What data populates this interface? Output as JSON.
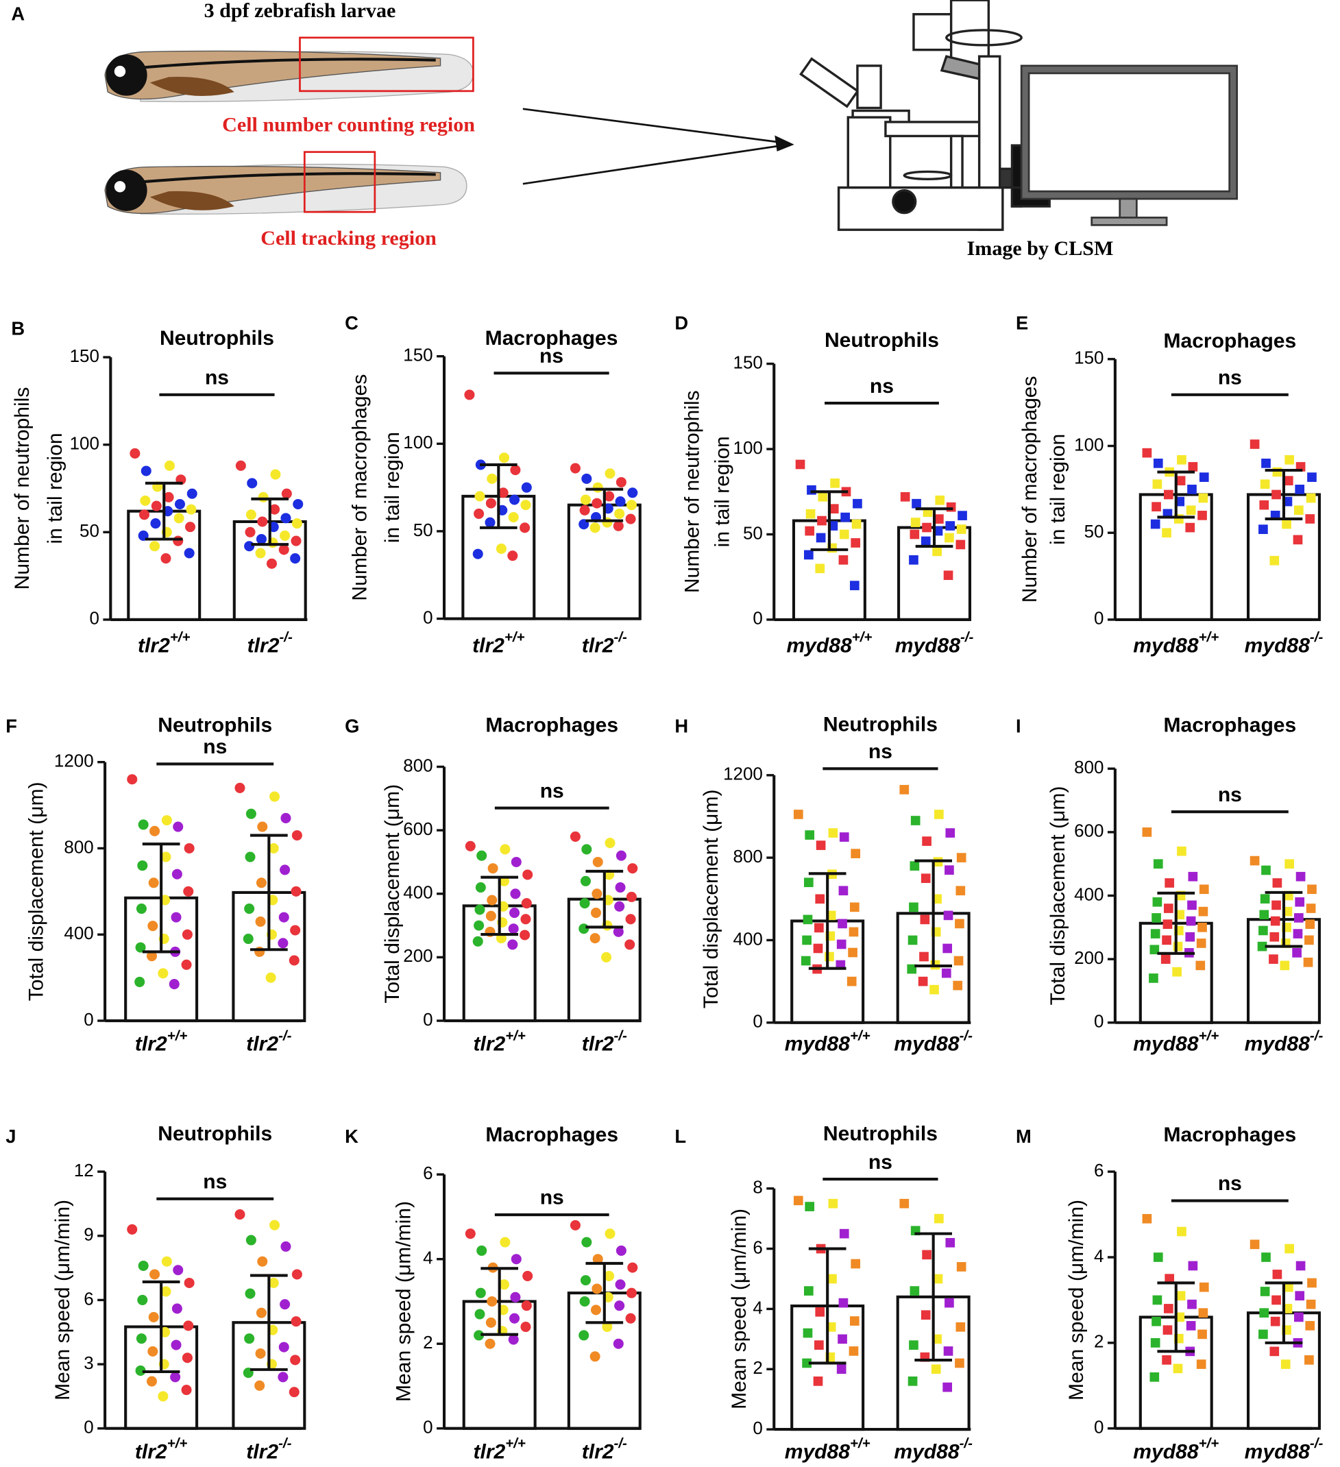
{
  "panel_a": {
    "label": "A",
    "title": "3 dpf zebrafish larvae",
    "regions": [
      "Cell number counting region",
      "Cell tracking region"
    ],
    "caption": "Image by CLSM"
  },
  "chart_data": [
    {
      "type": "bar",
      "label": "B",
      "title": "Neutrophils",
      "ylabel": [
        "Number of neutrophils",
        "in tail region"
      ],
      "categories": [
        {
          "name": "tlr2",
          "genotype": "+/+"
        },
        {
          "name": "tlr2",
          "genotype": "-/-"
        }
      ],
      "values": [
        62,
        56
      ],
      "errors": [
        16,
        13
      ],
      "color": "#ffffff",
      "marker": "circle",
      "point_colors": [
        "#e8343a",
        "#f5e82a",
        "#1c2ee0"
      ],
      "points": [
        [
          95,
          88,
          85,
          80,
          76,
          72,
          70,
          68,
          66,
          65,
          63,
          62,
          60,
          58,
          55,
          53,
          50,
          48,
          45,
          42,
          38,
          35
        ],
        [
          88,
          83,
          78,
          72,
          70,
          66,
          63,
          60,
          58,
          56,
          55,
          53,
          50,
          48,
          46,
          45,
          44,
          42,
          40,
          38,
          35,
          32
        ]
      ],
      "ylim": [
        0,
        150
      ],
      "yticks": [
        0,
        50,
        100,
        150
      ],
      "annotation": "ns"
    },
    {
      "type": "bar",
      "label": "C",
      "title": "Macrophages",
      "ylabel": [
        "Number of macrophages",
        "in tail region"
      ],
      "categories": [
        {
          "name": "tlr2",
          "genotype": "+/+"
        },
        {
          "name": "tlr2",
          "genotype": "-/-"
        }
      ],
      "values": [
        70,
        65
      ],
      "errors": [
        18,
        9
      ],
      "color": "#ffffff",
      "marker": "circle",
      "point_colors": [
        "#e8343a",
        "#f5e82a",
        "#1c2ee0"
      ],
      "points": [
        [
          128,
          92,
          88,
          85,
          80,
          75,
          72,
          70,
          68,
          66,
          65,
          62,
          60,
          58,
          55,
          52,
          40,
          37,
          36
        ],
        [
          86,
          83,
          80,
          78,
          75,
          72,
          70,
          68,
          67,
          66,
          65,
          63,
          62,
          60,
          58,
          57,
          55,
          54,
          53,
          52
        ]
      ],
      "ylim": [
        0,
        150
      ],
      "yticks": [
        0,
        50,
        100,
        150
      ],
      "annotation": "ns"
    },
    {
      "type": "bar",
      "label": "D",
      "title": "Neutrophils",
      "ylabel": [
        "Number of neutrophils",
        "in tail region"
      ],
      "categories": [
        {
          "name": "myd88",
          "genotype": "+/+"
        },
        {
          "name": "myd88",
          "genotype": "-/-"
        }
      ],
      "values": [
        58,
        54
      ],
      "errors": [
        17,
        11
      ],
      "color": "#ffffff",
      "marker": "square",
      "point_colors": [
        "#e8343a",
        "#f5e82a",
        "#1c2ee0"
      ],
      "points": [
        [
          91,
          80,
          76,
          75,
          72,
          68,
          65,
          62,
          60,
          58,
          56,
          55,
          52,
          50,
          48,
          45,
          42,
          38,
          35,
          30,
          20
        ],
        [
          72,
          70,
          68,
          66,
          63,
          61,
          59,
          57,
          55,
          54,
          53,
          52,
          50,
          48,
          46,
          44,
          40,
          35,
          26
        ]
      ],
      "ylim": [
        0,
        150
      ],
      "yticks": [
        0,
        50,
        100,
        150
      ],
      "annotation": "ns"
    },
    {
      "type": "bar",
      "label": "E",
      "title": "Macrophages",
      "ylabel": [
        "Number of macrophages",
        "in tail region"
      ],
      "categories": [
        {
          "name": "myd88",
          "genotype": "+/+"
        },
        {
          "name": "myd88",
          "genotype": "-/-"
        }
      ],
      "values": [
        72,
        72
      ],
      "errors": [
        13,
        14
      ],
      "color": "#ffffff",
      "marker": "square",
      "point_colors": [
        "#e8343a",
        "#f5e82a",
        "#1c2ee0"
      ],
      "points": [
        [
          96,
          92,
          90,
          88,
          85,
          82,
          80,
          78,
          75,
          72,
          70,
          68,
          65,
          63,
          61,
          60,
          58,
          55,
          53,
          50
        ],
        [
          101,
          92,
          90,
          88,
          85,
          82,
          80,
          78,
          75,
          72,
          70,
          68,
          66,
          63,
          60,
          58,
          55,
          52,
          46,
          34
        ]
      ],
      "ylim": [
        0,
        150
      ],
      "yticks": [
        0,
        50,
        100,
        150
      ],
      "annotation": "ns"
    },
    {
      "type": "bar",
      "label": "F",
      "title": "Neutrophils",
      "ylabel": [
        "Total displacement (μm)"
      ],
      "categories": [
        {
          "name": "tlr2",
          "genotype": "+/+"
        },
        {
          "name": "tlr2",
          "genotype": "-/-"
        }
      ],
      "values": [
        570,
        595
      ],
      "errors": [
        250,
        265
      ],
      "color": "#ffffff",
      "marker": "circle",
      "point_colors": [
        "#e8343a",
        "#f5e82a",
        "#2bb32b",
        "#a020d0",
        "#f08a24"
      ],
      "points": [
        [
          1120,
          930,
          910,
          900,
          880,
          800,
          760,
          720,
          680,
          640,
          600,
          560,
          520,
          480,
          440,
          400,
          380,
          340,
          320,
          300,
          260,
          220,
          180,
          170
        ],
        [
          1080,
          1040,
          960,
          940,
          900,
          860,
          800,
          760,
          700,
          640,
          600,
          560,
          520,
          480,
          460,
          420,
          400,
          380,
          360,
          320,
          280,
          200
        ]
      ],
      "ylim": [
        0,
        1200
      ],
      "yticks": [
        0,
        400,
        800,
        1200
      ],
      "annotation": "ns"
    },
    {
      "type": "bar",
      "label": "G",
      "title": "Macrophages",
      "ylabel": [
        "Total displacement (μm)"
      ],
      "categories": [
        {
          "name": "tlr2",
          "genotype": "+/+"
        },
        {
          "name": "tlr2",
          "genotype": "-/-"
        }
      ],
      "values": [
        362,
        383
      ],
      "errors": [
        90,
        88
      ],
      "color": "#ffffff",
      "marker": "circle",
      "point_colors": [
        "#e8343a",
        "#f5e82a",
        "#2bb32b",
        "#a020d0",
        "#f08a24"
      ],
      "points": [
        [
          550,
          540,
          520,
          500,
          480,
          460,
          440,
          420,
          400,
          380,
          370,
          360,
          350,
          340,
          330,
          320,
          310,
          300,
          290,
          280,
          270,
          260,
          250,
          240
        ],
        [
          580,
          560,
          540,
          520,
          500,
          480,
          460,
          440,
          420,
          400,
          390,
          380,
          370,
          360,
          340,
          320,
          300,
          290,
          280,
          260,
          240,
          200
        ]
      ],
      "ylim": [
        0,
        800
      ],
      "yticks": [
        0,
        200,
        400,
        600,
        800
      ],
      "annotation": "ns"
    },
    {
      "type": "bar",
      "label": "H",
      "title": "Neutrophils",
      "ylabel": [
        "Total displacement (μm)"
      ],
      "categories": [
        {
          "name": "myd88",
          "genotype": "+/+"
        },
        {
          "name": "myd88",
          "genotype": "-/-"
        }
      ],
      "values": [
        493,
        530
      ],
      "errors": [
        230,
        255
      ],
      "color": "#ffffff",
      "marker": "square",
      "point_colors": [
        "#f08a24",
        "#f5e82a",
        "#2bb32b",
        "#a020d0",
        "#e8343a"
      ],
      "points": [
        [
          1010,
          920,
          910,
          900,
          860,
          820,
          720,
          680,
          640,
          600,
          560,
          520,
          500,
          480,
          460,
          440,
          420,
          400,
          380,
          360,
          340,
          320,
          300,
          280,
          260,
          200
        ],
        [
          1130,
          1010,
          980,
          920,
          880,
          800,
          780,
          760,
          740,
          700,
          640,
          600,
          560,
          520,
          500,
          480,
          440,
          400,
          360,
          320,
          300,
          280,
          260,
          240,
          200,
          180,
          160
        ]
      ],
      "ylim": [
        0,
        1200
      ],
      "yticks": [
        0,
        400,
        800,
        1200
      ],
      "annotation": "ns"
    },
    {
      "type": "bar",
      "label": "I",
      "title": "Macrophages",
      "ylabel": [
        "Total displacement (μm)"
      ],
      "categories": [
        {
          "name": "myd88",
          "genotype": "+/+"
        },
        {
          "name": "myd88",
          "genotype": "-/-"
        }
      ],
      "values": [
        313,
        325
      ],
      "errors": [
        95,
        85
      ],
      "color": "#ffffff",
      "marker": "square",
      "point_colors": [
        "#f08a24",
        "#f5e82a",
        "#2bb32b",
        "#a020d0",
        "#e8343a"
      ],
      "points": [
        [
          600,
          540,
          500,
          460,
          440,
          420,
          400,
          380,
          370,
          360,
          350,
          340,
          330,
          320,
          310,
          300,
          290,
          280,
          270,
          260,
          250,
          240,
          230,
          220,
          200,
          180,
          160,
          140
        ],
        [
          510,
          500,
          480,
          460,
          440,
          420,
          400,
          390,
          380,
          370,
          360,
          350,
          340,
          330,
          320,
          310,
          300,
          290,
          280,
          270,
          260,
          250,
          240,
          220,
          200,
          190,
          180
        ]
      ],
      "ylim": [
        0,
        800
      ],
      "yticks": [
        0,
        200,
        400,
        600,
        800
      ],
      "annotation": "ns"
    },
    {
      "type": "bar",
      "label": "J",
      "title": "Neutrophils",
      "ylabel": [
        "Mean speed (μm/min)"
      ],
      "categories": [
        {
          "name": "tlr2",
          "genotype": "+/+"
        },
        {
          "name": "tlr2",
          "genotype": "-/-"
        }
      ],
      "values": [
        4.75,
        4.95
      ],
      "errors": [
        2.1,
        2.2
      ],
      "color": "#ffffff",
      "marker": "circle",
      "point_colors": [
        "#e8343a",
        "#f5e82a",
        "#2bb32b",
        "#a020d0",
        "#f08a24"
      ],
      "points": [
        [
          9.3,
          7.8,
          7.6,
          7.4,
          7.2,
          6.8,
          6.4,
          6.0,
          5.6,
          5.2,
          4.8,
          4.5,
          4.2,
          3.9,
          3.6,
          3.3,
          3.0,
          2.7,
          2.4,
          2.2,
          1.8,
          1.5
        ],
        [
          10.0,
          9.5,
          8.8,
          8.5,
          7.8,
          7.2,
          6.8,
          6.3,
          5.8,
          5.4,
          5.0,
          4.6,
          4.2,
          3.8,
          3.5,
          3.2,
          3.0,
          2.6,
          2.4,
          2.0,
          1.7
        ]
      ],
      "ylim": [
        0,
        12
      ],
      "yticks": [
        0,
        3,
        6,
        9,
        12
      ],
      "annotation": "ns"
    },
    {
      "type": "bar",
      "label": "K",
      "title": "Macrophages",
      "ylabel": [
        "Mean speed (μm/min)"
      ],
      "categories": [
        {
          "name": "tlr2",
          "genotype": "+/+"
        },
        {
          "name": "tlr2",
          "genotype": "-/-"
        }
      ],
      "values": [
        3.0,
        3.2
      ],
      "errors": [
        0.78,
        0.7
      ],
      "color": "#ffffff",
      "marker": "circle",
      "point_colors": [
        "#e8343a",
        "#f5e82a",
        "#2bb32b",
        "#a020d0",
        "#f08a24"
      ],
      "points": [
        [
          4.6,
          4.4,
          4.2,
          4.0,
          3.8,
          3.6,
          3.4,
          3.2,
          3.1,
          3.0,
          2.9,
          2.8,
          2.7,
          2.6,
          2.5,
          2.4,
          2.3,
          2.2,
          2.1,
          2.0
        ],
        [
          4.8,
          4.6,
          4.4,
          4.2,
          4.0,
          3.8,
          3.6,
          3.5,
          3.4,
          3.3,
          3.2,
          3.1,
          3.0,
          2.9,
          2.8,
          2.6,
          2.4,
          2.2,
          2.0,
          1.7
        ]
      ],
      "ylim": [
        0,
        6
      ],
      "yticks": [
        0,
        2,
        4,
        6
      ],
      "annotation": "ns"
    },
    {
      "type": "bar",
      "label": "L",
      "title": "Neutrophils",
      "ylabel": [
        "Mean speed (μm/min)"
      ],
      "categories": [
        {
          "name": "myd88",
          "genotype": "+/+"
        },
        {
          "name": "myd88",
          "genotype": "-/-"
        }
      ],
      "values": [
        4.1,
        4.4
      ],
      "errors": [
        1.9,
        2.1
      ],
      "color": "#ffffff",
      "marker": "square",
      "point_colors": [
        "#f08a24",
        "#f5e82a",
        "#2bb32b",
        "#a020d0",
        "#e8343a"
      ],
      "points": [
        [
          7.6,
          7.5,
          7.4,
          6.5,
          6.0,
          5.5,
          5.0,
          4.6,
          4.2,
          3.9,
          3.6,
          3.4,
          3.2,
          3.0,
          2.8,
          2.6,
          2.4,
          2.2,
          2.0,
          1.6
        ],
        [
          7.5,
          7.0,
          6.6,
          6.2,
          5.8,
          5.4,
          5.0,
          4.6,
          4.2,
          3.8,
          3.4,
          3.0,
          2.8,
          2.6,
          2.4,
          2.2,
          2.0,
          1.6,
          1.4
        ]
      ],
      "ylim": [
        0,
        8
      ],
      "yticks": [
        0,
        2,
        4,
        6,
        8
      ],
      "annotation": "ns"
    },
    {
      "type": "bar",
      "label": "M",
      "title": "Macrophages",
      "ylabel": [
        "Mean speed (μm/min)"
      ],
      "categories": [
        {
          "name": "myd88",
          "genotype": "+/+"
        },
        {
          "name": "myd88",
          "genotype": "-/-"
        }
      ],
      "values": [
        2.6,
        2.7
      ],
      "errors": [
        0.8,
        0.7
      ],
      "color": "#ffffff",
      "marker": "square",
      "point_colors": [
        "#f08a24",
        "#f5e82a",
        "#2bb32b",
        "#a020d0",
        "#e8343a"
      ],
      "points": [
        [
          4.9,
          4.6,
          4.0,
          3.8,
          3.5,
          3.3,
          3.1,
          3.0,
          2.9,
          2.8,
          2.7,
          2.6,
          2.5,
          2.4,
          2.3,
          2.2,
          2.1,
          2.0,
          1.8,
          1.6,
          1.5,
          1.4,
          1.2
        ],
        [
          4.3,
          4.2,
          4.0,
          3.8,
          3.6,
          3.4,
          3.3,
          3.2,
          3.1,
          3.0,
          2.9,
          2.8,
          2.7,
          2.6,
          2.5,
          2.4,
          2.3,
          2.2,
          2.0,
          1.8,
          1.6,
          1.5
        ]
      ],
      "ylim": [
        0,
        6
      ],
      "yticks": [
        0,
        2,
        4,
        6
      ],
      "annotation": "ns"
    }
  ]
}
